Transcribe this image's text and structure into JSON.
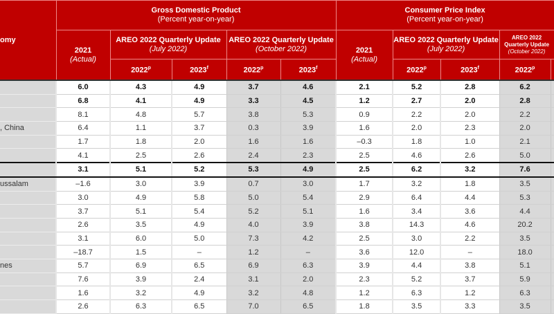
{
  "header": {
    "economy_label": "omy",
    "gdp_title": "Gross Domestic Product",
    "gdp_sub": "(Percent year-on-year)",
    "cpi_title": "Consumer Price Index",
    "cpi_sub": "(Percent year-on-year)",
    "actual_year": "2021",
    "actual_note": "(Actual)",
    "areo_title": "AREO 2022 Quarterly Update",
    "july": "(July 2022)",
    "october": "(October 2022)",
    "y2022": "2022",
    "y2022_sup": "p",
    "y2023": "2023",
    "y2023_sup": "f"
  },
  "colors": {
    "header_red": "#c00000",
    "shade_gray": "#d9d9d9"
  },
  "rows": [
    {
      "label": "",
      "bold": true,
      "values": [
        "6.0",
        "4.3",
        "4.9",
        "3.7",
        "4.6",
        "2.1",
        "5.2",
        "2.8",
        "6.2"
      ]
    },
    {
      "label": "",
      "bold": true,
      "values": [
        "6.8",
        "4.1",
        "4.9",
        "3.3",
        "4.5",
        "1.2",
        "2.7",
        "2.0",
        "2.8"
      ]
    },
    {
      "label": "",
      "bold": false,
      "values": [
        "8.1",
        "4.8",
        "5.7",
        "3.8",
        "5.3",
        "0.9",
        "2.2",
        "2.0",
        "2.2"
      ]
    },
    {
      "label": ", China",
      "bold": false,
      "values": [
        "6.4",
        "1.1",
        "3.7",
        "0.3",
        "3.9",
        "1.6",
        "2.0",
        "2.3",
        "2.0"
      ]
    },
    {
      "label": "",
      "bold": false,
      "values": [
        "1.7",
        "1.8",
        "2.0",
        "1.6",
        "1.6",
        "–0.3",
        "1.8",
        "1.0",
        "2.1"
      ]
    },
    {
      "label": "",
      "bold": false,
      "values": [
        "4.1",
        "2.5",
        "2.6",
        "2.4",
        "2.3",
        "2.5",
        "4.6",
        "2.6",
        "5.0"
      ]
    },
    {
      "label": "",
      "bold": true,
      "values": [
        "3.1",
        "5.1",
        "5.2",
        "5.3",
        "4.9",
        "2.5",
        "6.2",
        "3.2",
        "7.6"
      ]
    },
    {
      "label": "ussalam",
      "bold": false,
      "values": [
        "–1.6",
        "3.0",
        "3.9",
        "0.7",
        "3.0",
        "1.7",
        "3.2",
        "1.8",
        "3.5"
      ]
    },
    {
      "label": "",
      "bold": false,
      "values": [
        "3.0",
        "4.9",
        "5.8",
        "5.0",
        "5.4",
        "2.9",
        "6.4",
        "4.4",
        "5.3"
      ]
    },
    {
      "label": "",
      "bold": false,
      "values": [
        "3.7",
        "5.1",
        "5.4",
        "5.2",
        "5.1",
        "1.6",
        "3.4",
        "3.6",
        "4.4"
      ]
    },
    {
      "label": "",
      "bold": false,
      "values": [
        "2.6",
        "3.5",
        "4.9",
        "4.0",
        "3.9",
        "3.8",
        "14.3",
        "4.6",
        "20.2"
      ]
    },
    {
      "label": "",
      "bold": false,
      "values": [
        "3.1",
        "6.0",
        "5.0",
        "7.3",
        "4.2",
        "2.5",
        "3.0",
        "2.2",
        "3.5"
      ]
    },
    {
      "label": "",
      "bold": false,
      "values": [
        "–18.7",
        "1.5",
        "–",
        "1.2",
        "–",
        "3.6",
        "12.0",
        "–",
        "18.0"
      ]
    },
    {
      "label": "nes",
      "bold": false,
      "values": [
        "5.7",
        "6.9",
        "6.5",
        "6.9",
        "6.3",
        "3.9",
        "4.4",
        "3.8",
        "5.1"
      ]
    },
    {
      "label": "",
      "bold": false,
      "values": [
        "7.6",
        "3.9",
        "2.4",
        "3.1",
        "2.0",
        "2.3",
        "5.2",
        "3.7",
        "5.9"
      ]
    },
    {
      "label": "",
      "bold": false,
      "values": [
        "1.6",
        "3.2",
        "4.9",
        "3.2",
        "4.8",
        "1.2",
        "6.3",
        "1.2",
        "6.3"
      ]
    },
    {
      "label": "",
      "bold": false,
      "values": [
        "2.6",
        "6.3",
        "6.5",
        "7.0",
        "6.5",
        "1.8",
        "3.5",
        "3.3",
        "3.5"
      ]
    }
  ]
}
